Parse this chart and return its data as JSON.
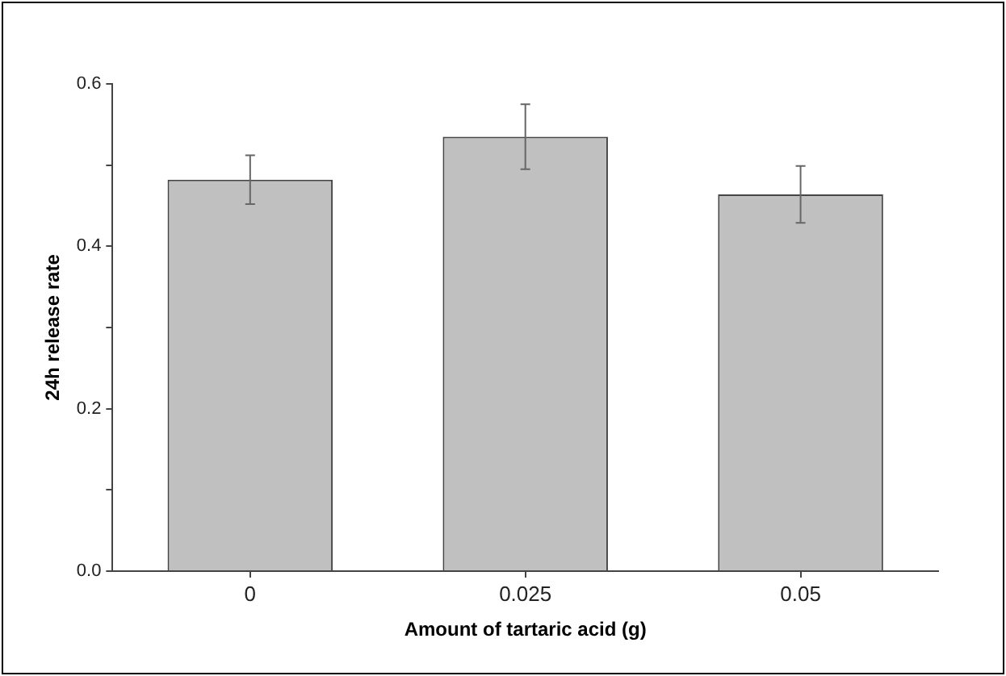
{
  "chart_data": {
    "type": "bar",
    "xlabel": "Amount of tartaric acid (g)",
    "ylabel": "24h release rate",
    "categories": [
      "0",
      "0.025",
      "0.05"
    ],
    "values": [
      0.482,
      0.535,
      0.464
    ],
    "errors": [
      0.03,
      0.04,
      0.035
    ],
    "color": "#c0c0c0",
    "ylim": [
      0,
      0.6
    ],
    "yticks": [
      {
        "value": 0,
        "label": "0.0"
      },
      {
        "value": 0.1,
        "label": null
      },
      0.2,
      {
        "value": 0.3,
        "label": null
      },
      0.4,
      {
        "value": 0.5,
        "label": null
      },
      0.6
    ],
    "grid": false,
    "legend": false
  }
}
